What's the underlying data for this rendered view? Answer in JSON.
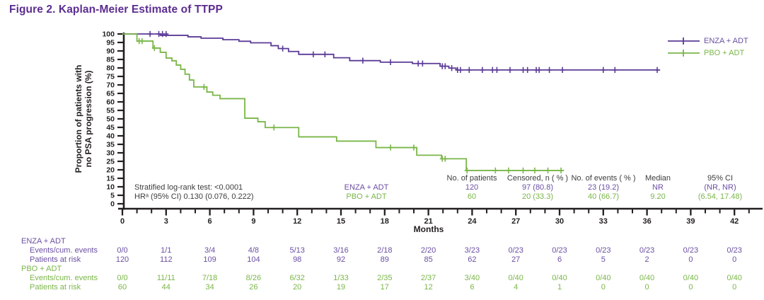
{
  "title": "Figure 2. Kaplan-Meier Estimate of TTPP",
  "colors": {
    "title": "#5B2D90",
    "enza": "#5C3B97",
    "enza_text": "#6B4FA3",
    "pbo": "#7AB648",
    "pbo_text": "#7AB648",
    "axis": "#231F20",
    "text": "#3C3C3B"
  },
  "legend": [
    {
      "label": "ENZA + ADT",
      "color_key": "enza"
    },
    {
      "label": "PBO + ADT",
      "color_key": "pbo"
    }
  ],
  "annotations": {
    "logrank": "Stratified log-rank test: <0.0001",
    "hr": "HRᵃ (95% CI) 0.130 (0.076, 0.222)"
  },
  "stats_table": {
    "row_labels": [
      "ENZA + ADT",
      "PBO + ADT"
    ],
    "columns": [
      "No. of patients",
      "Censored, n ( % )",
      "No. of events ( % )",
      "Median",
      "95% CI"
    ],
    "rows": [
      [
        "120",
        "97 (80.8)",
        "23 (19.2)",
        "NR",
        "(NR, NR)"
      ],
      [
        "60",
        "20 (33.3)",
        "40 (66.7)",
        "9.20",
        "(6.54, 17.48)"
      ]
    ]
  },
  "chart_data": {
    "type": "line",
    "subtype": "kaplan-meier-step",
    "title": "Kaplan-Meier Estimate of TTPP",
    "xlabel": "Months",
    "ylabel_lines": [
      "Proportion of patients with",
      "no PSA progression (%)"
    ],
    "ylabel": "Proportion of patients with no PSA progression (%)",
    "xlim": [
      0,
      43
    ],
    "ylim": [
      0,
      100
    ],
    "xticks_major": [
      0,
      3,
      6,
      9,
      12,
      15,
      18,
      21,
      24,
      27,
      30,
      33,
      36,
      39,
      42
    ],
    "xtick_minor_step": 1,
    "ytick_step": 5,
    "grid": false,
    "legend_position": "top-right",
    "series": [
      {
        "name": "ENZA + ADT",
        "color": "#5C3B97",
        "start": [
          0,
          100
        ],
        "steps": [
          [
            2.6,
            99.2
          ],
          [
            4.5,
            98.3
          ],
          [
            5.4,
            97.5
          ],
          [
            6.9,
            96.6
          ],
          [
            8.0,
            95.7
          ],
          [
            8.8,
            94.8
          ],
          [
            10.2,
            93.1
          ],
          [
            10.7,
            91.4
          ],
          [
            11.4,
            89.7
          ],
          [
            12.1,
            88.0
          ],
          [
            14.5,
            86.0
          ],
          [
            15.6,
            84.3
          ],
          [
            17.7,
            83.4
          ],
          [
            19.9,
            82.6
          ],
          [
            21.8,
            81.0
          ],
          [
            22.4,
            79.9
          ],
          [
            22.9,
            78.8
          ]
        ],
        "end_x": 36.9,
        "censors": [
          [
            1.9,
            100
          ],
          [
            2.5,
            100
          ],
          [
            2.75,
            100
          ],
          [
            3.0,
            100
          ],
          [
            11.0,
            91.4
          ],
          [
            13.1,
            88.0
          ],
          [
            13.9,
            88.0
          ],
          [
            16.5,
            84.3
          ],
          [
            18.4,
            83.4
          ],
          [
            20.3,
            82.6
          ],
          [
            20.6,
            82.6
          ],
          [
            21.95,
            81.0
          ],
          [
            22.15,
            81.0
          ],
          [
            22.6,
            79.9
          ],
          [
            23.0,
            78.8
          ],
          [
            23.2,
            78.8
          ],
          [
            23.8,
            78.8
          ],
          [
            24.7,
            78.8
          ],
          [
            25.4,
            78.8
          ],
          [
            25.7,
            78.8
          ],
          [
            26.6,
            78.8
          ],
          [
            27.5,
            78.8
          ],
          [
            27.8,
            78.8
          ],
          [
            28.4,
            78.8
          ],
          [
            28.6,
            78.8
          ],
          [
            29.3,
            78.8
          ],
          [
            30.2,
            78.8
          ],
          [
            33.0,
            78.8
          ],
          [
            33.8,
            78.8
          ],
          [
            36.7,
            78.8
          ]
        ]
      },
      {
        "name": "PBO + ADT",
        "color": "#7AB648",
        "start": [
          0,
          100
        ],
        "steps": [
          [
            1.0,
            95.8
          ],
          [
            2.1,
            91.7
          ],
          [
            2.6,
            89.2
          ],
          [
            3.0,
            85.8
          ],
          [
            3.4,
            84.2
          ],
          [
            3.7,
            81.7
          ],
          [
            4.0,
            79.2
          ],
          [
            4.3,
            76.3
          ],
          [
            4.6,
            72.9
          ],
          [
            4.9,
            68.8
          ],
          [
            5.8,
            65.8
          ],
          [
            6.2,
            63.9
          ],
          [
            6.7,
            61.9
          ],
          [
            8.4,
            50.4
          ],
          [
            9.3,
            48.3
          ],
          [
            9.8,
            44.9
          ],
          [
            12.1,
            39.4
          ],
          [
            14.7,
            36.9
          ],
          [
            17.4,
            33.1
          ],
          [
            20.2,
            28.6
          ],
          [
            21.9,
            26.5
          ],
          [
            23.6,
            19.6
          ]
        ],
        "end_x": 30.3,
        "censors": [
          [
            1.15,
            95.8
          ],
          [
            1.35,
            95.8
          ],
          [
            2.2,
            91.7
          ],
          [
            5.6,
            68.8
          ],
          [
            10.4,
            44.9
          ],
          [
            18.4,
            33.1
          ],
          [
            20.0,
            33.1
          ],
          [
            21.95,
            26.5
          ],
          [
            22.15,
            26.5
          ],
          [
            23.65,
            19.6
          ],
          [
            25.6,
            19.6
          ],
          [
            26.5,
            19.6
          ],
          [
            27.5,
            19.6
          ],
          [
            28.3,
            19.6
          ],
          [
            29.2,
            19.6
          ],
          [
            30.1,
            19.6
          ]
        ]
      }
    ]
  },
  "risk_table": {
    "months": [
      0,
      3,
      6,
      9,
      12,
      15,
      18,
      21,
      24,
      27,
      30,
      33,
      36,
      39,
      42
    ],
    "groups": [
      {
        "label": "ENZA + ADT",
        "rows": [
          {
            "label": "Events/cum. events",
            "values": [
              "0/0",
              "1/1",
              "3/4",
              "4/8",
              "5/13",
              "3/16",
              "2/18",
              "2/20",
              "3/23",
              "0/23",
              "0/23",
              "0/23",
              "0/23",
              "0/23",
              "0/23"
            ]
          },
          {
            "label": "Patients at risk",
            "values": [
              "120",
              "112",
              "109",
              "104",
              "98",
              "92",
              "89",
              "85",
              "62",
              "27",
              "6",
              "5",
              "2",
              "0",
              "0"
            ]
          }
        ]
      },
      {
        "label": "PBO + ADT",
        "rows": [
          {
            "label": "Events/cum. events",
            "values": [
              "0/0",
              "11/11",
              "7/18",
              "8/26",
              "6/32",
              "1/33",
              "2/35",
              "2/37",
              "3/40",
              "0/40",
              "0/40",
              "0/40",
              "0/40",
              "0/40",
              "0/40"
            ]
          },
          {
            "label": "Patients at risk",
            "values": [
              "60",
              "44",
              "34",
              "26",
              "20",
              "19",
              "17",
              "12",
              "6",
              "4",
              "1",
              "0",
              "0",
              "0",
              "0"
            ]
          }
        ]
      }
    ]
  }
}
